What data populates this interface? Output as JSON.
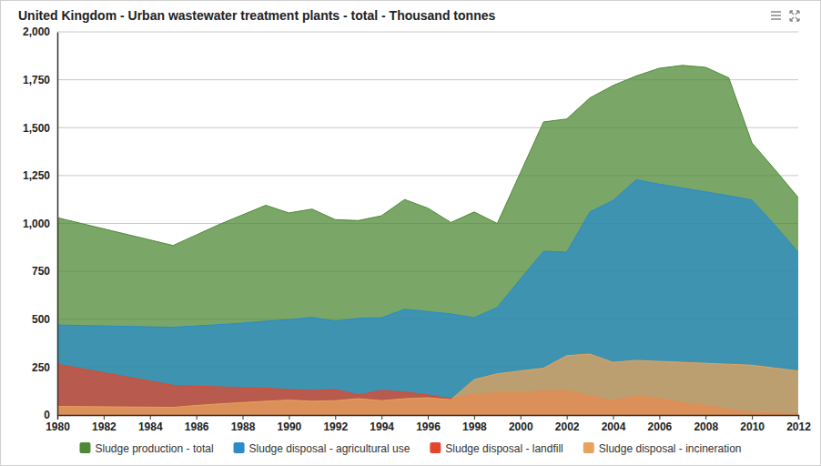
{
  "chart_data": {
    "type": "area",
    "title": "United Kingdom - Urban wastewater treatment plants - total - Thousand tonnes",
    "x": [
      1980,
      1985,
      1986,
      1987,
      1988,
      1989,
      1990,
      1991,
      1992,
      1993,
      1994,
      1995,
      1996,
      1997,
      1998,
      1999,
      2000,
      2001,
      2002,
      2003,
      2004,
      2005,
      2006,
      2007,
      2008,
      2009,
      2010,
      2011,
      2012
    ],
    "xlim": [
      1980,
      2012
    ],
    "xticks": [
      1980,
      1982,
      1984,
      1986,
      1988,
      1990,
      1992,
      1994,
      1996,
      1998,
      2000,
      2002,
      2004,
      2006,
      2008,
      2010,
      2012
    ],
    "ylim": [
      0,
      2000
    ],
    "yticks": [
      0,
      250,
      500,
      750,
      {
        "value": 1000,
        "label": "1,000"
      },
      {
        "value": 1250,
        "label": "1,250"
      },
      {
        "value": 1500,
        "label": "1,500"
      },
      {
        "value": 1750,
        "label": "1,750"
      },
      {
        "value": 2000,
        "label": "2,000"
      }
    ],
    "grid": true,
    "legend": "bottom",
    "stacked": false,
    "series": [
      {
        "name": "Sludge production - total",
        "color": "#4e8a35",
        "values": [
          1030,
          885,
          940,
          995,
          1045,
          1095,
          1055,
          1075,
          1020,
          1015,
          1040,
          1125,
          1080,
          1005,
          1060,
          1000,
          1265,
          1530,
          1545,
          1655,
          1720,
          1770,
          1810,
          1825,
          1815,
          1760,
          1420,
          1280,
          1135
        ]
      },
      {
        "name": "Sludge disposal - agricultural use",
        "color": "#2a8cc8",
        "values": [
          470,
          458,
          465,
          472,
          480,
          490,
          498,
          510,
          490,
          505,
          508,
          552,
          540,
          528,
          508,
          562,
          710,
          855,
          850,
          1060,
          1120,
          1228,
          1205,
          1185,
          1165,
          1145,
          1122,
          990,
          850
        ]
      },
      {
        "name": "Sludge disposal - landfill",
        "color": "#e2472e",
        "values": [
          265,
          155,
          150,
          147,
          143,
          140,
          133,
          128,
          133,
          105,
          128,
          120,
          105,
          85,
          110,
          115,
          118,
          125,
          128,
          100,
          75,
          100,
          85,
          65,
          50,
          30,
          15,
          10,
          8
        ]
      },
      {
        "name": "Sludge disposal - incineration",
        "color": "#e6a35c",
        "values": [
          45,
          40,
          50,
          58,
          65,
          72,
          78,
          72,
          75,
          85,
          75,
          85,
          90,
          80,
          185,
          215,
          230,
          245,
          310,
          318,
          275,
          285,
          280,
          275,
          270,
          265,
          260,
          245,
          230
        ]
      }
    ]
  }
}
